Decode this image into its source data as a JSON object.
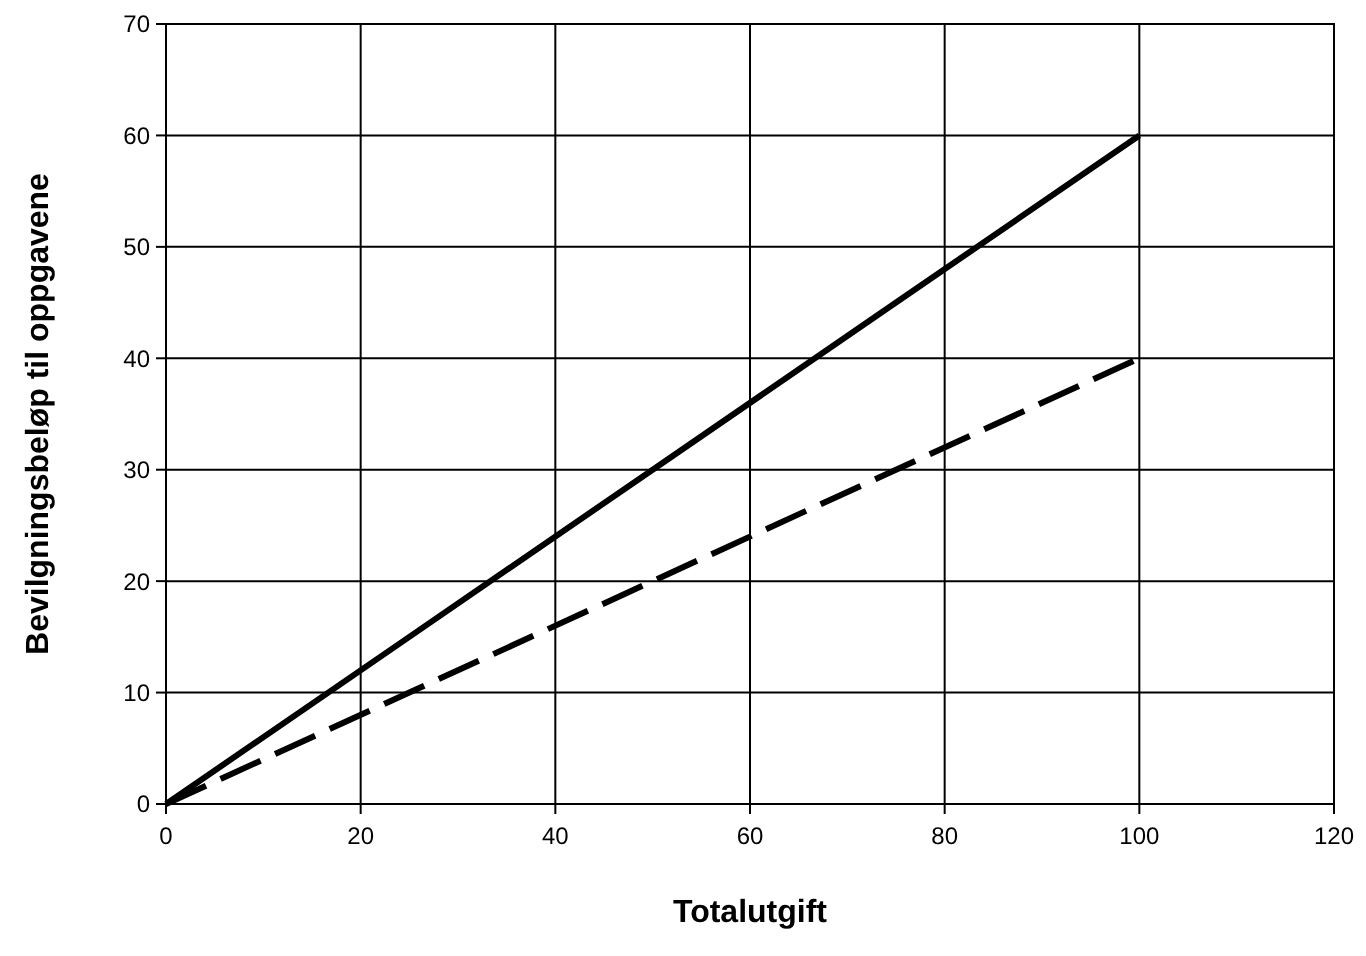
{
  "chart_data": {
    "type": "line",
    "xlabel": "Totalutgift",
    "ylabel": "Bevilgningsbeløp til oppgavene",
    "x": [
      0,
      25,
      50,
      75,
      100
    ],
    "series": [
      {
        "color": "#000000",
        "values": [
          0,
          15,
          30,
          45,
          60
        ],
        "line_style": "solid"
      },
      {
        "color": "#000000",
        "values": [
          0,
          10,
          20,
          30,
          40
        ],
        "line_style": "dashed"
      }
    ],
    "xlim": [
      0,
      120
    ],
    "xticks": [
      0,
      20,
      40,
      60,
      80,
      100,
      120
    ],
    "ylim": [
      0,
      70
    ],
    "yticks": [
      0,
      10,
      20,
      30,
      40,
      50,
      60,
      70
    ],
    "grid": true,
    "marker": "none"
  }
}
